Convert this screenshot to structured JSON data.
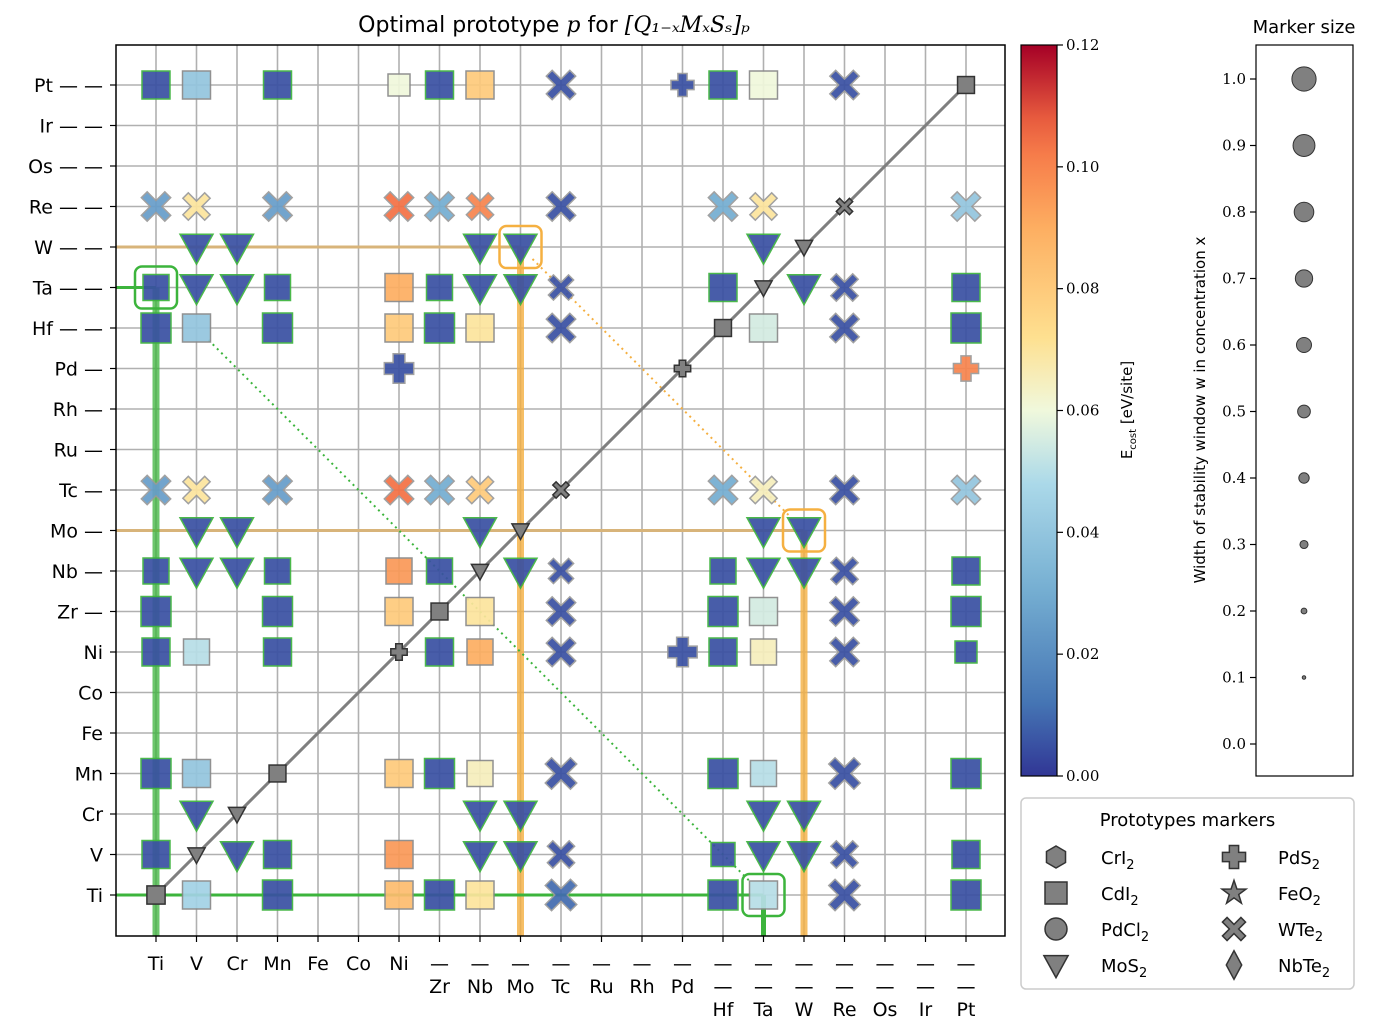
{
  "chart_data": {
    "type": "scatter",
    "title_prefix": "Optimal prototype ",
    "title_p": "p",
    "title_for": " for ",
    "title_formula": "[Q₁₋ₓMₓSₛ]ₚ",
    "x_top_labels": [
      "Ti",
      "V",
      "Cr",
      "Mn",
      "Fe",
      "Co",
      "Ni",
      "—",
      "—",
      "—",
      "—",
      "—",
      "—",
      "—",
      "—",
      "—",
      "—",
      "—",
      "—",
      "—",
      "—"
    ],
    "x_bottom_labels": [
      "",
      "",
      "",
      "",
      "",
      "",
      "",
      "Zr",
      "Nb",
      "Mo",
      "Tc",
      "Ru",
      "Rh",
      "Pd",
      "—",
      "—",
      "—",
      "—",
      "—",
      "—",
      "—"
    ],
    "x_third_labels": [
      "",
      "",
      "",
      "",
      "",
      "",
      "",
      "",
      "",
      "",
      "",
      "",
      "",
      "",
      "Hf",
      "Ta",
      "W",
      "Re",
      "Os",
      "Ir",
      "Pt"
    ],
    "y_labels": [
      "Ti",
      "V",
      "Cr",
      "Mn",
      "Fe",
      "Co",
      "Ni",
      "Zr —",
      "Nb —",
      "Mo —",
      "Tc —",
      "Ru —",
      "Rh —",
      "Pd —",
      "Hf — —",
      "Ta — —",
      "W — —",
      "Re — —",
      "Os — —",
      "Ir — —",
      "Pt — —"
    ],
    "colorbar": {
      "label": "E_cost [eV/site]",
      "label_main": "E",
      "label_sub": "cost",
      "label_unit": " [eV/site]",
      "min": 0.0,
      "max": 0.12,
      "ticks": [
        "0.00",
        "0.02",
        "0.04",
        "0.06",
        "0.08",
        "0.10",
        "0.12"
      ]
    },
    "size_legend": {
      "title": "Marker size",
      "axis_label": "Width of stability window w in concentration x",
      "values": [
        "0.0",
        "0.1",
        "0.2",
        "0.3",
        "0.4",
        "0.5",
        "0.6",
        "0.7",
        "0.8",
        "0.9",
        "1.0"
      ]
    },
    "prototype_legend": {
      "title": "Prototypes markers",
      "items": [
        {
          "name": "CrI",
          "sub": "2",
          "shape": "hexagon"
        },
        {
          "name": "PdS",
          "sub": "2",
          "shape": "plus"
        },
        {
          "name": "CdI",
          "sub": "2",
          "shape": "square"
        },
        {
          "name": "FeO",
          "sub": "2",
          "shape": "star"
        },
        {
          "name": "PdCl",
          "sub": "2",
          "shape": "circle"
        },
        {
          "name": "WTe",
          "sub": "2",
          "shape": "x"
        },
        {
          "name": "MoS",
          "sub": "2",
          "shape": "triangle"
        },
        {
          "name": "NbTe",
          "sub": "2",
          "shape": "diamond"
        }
      ]
    },
    "colors": {
      "low": "#3b4a9e",
      "accent_green": "#3cb43c",
      "accent_orange": "#f5b041",
      "diag": "#7f7f7f",
      "grid": "#b0b0b0"
    },
    "points": [
      [
        0,
        0,
        "square",
        -1,
        0.8
      ],
      [
        1,
        1,
        "triangle",
        -1,
        0.6
      ],
      [
        2,
        2,
        "triangle",
        -1,
        0.6
      ],
      [
        3,
        3,
        "square",
        -1,
        0.7
      ],
      [
        6,
        6,
        "plus",
        -1,
        0.6
      ],
      [
        7,
        7,
        "square",
        -1,
        0.7
      ],
      [
        8,
        8,
        "triangle",
        -1,
        0.6
      ],
      [
        9,
        9,
        "triangle",
        -1,
        0.6
      ],
      [
        10,
        10,
        "x",
        -1,
        0.6
      ],
      [
        13,
        13,
        "plus",
        -1,
        0.6
      ],
      [
        14,
        14,
        "square",
        -1,
        0.7
      ],
      [
        15,
        15,
        "triangle",
        -1,
        0.6
      ],
      [
        16,
        16,
        "triangle",
        -1,
        0.6
      ],
      [
        17,
        17,
        "x",
        -1,
        0.6
      ],
      [
        20,
        20,
        "square",
        -1,
        0.7
      ],
      [
        1,
        0,
        "square",
        0.045,
        0.8
      ],
      [
        3,
        0,
        "square",
        0.005,
        0.9
      ],
      [
        6,
        0,
        "square",
        0.085,
        0.8
      ],
      [
        7,
        0,
        "square",
        0.005,
        0.9
      ],
      [
        8,
        0,
        "square",
        0.07,
        0.8
      ],
      [
        10,
        0,
        "x",
        0.01,
        0.9
      ],
      [
        14,
        0,
        "square",
        0.005,
        0.9
      ],
      [
        15,
        0,
        "square",
        0.05,
        0.8
      ],
      [
        17,
        0,
        "x",
        0.005,
        0.9
      ],
      [
        20,
        0,
        "square",
        0.005,
        0.9
      ],
      [
        0,
        1,
        "square",
        0.005,
        0.8
      ],
      [
        2,
        1,
        "triangle",
        0.005,
        0.9
      ],
      [
        3,
        1,
        "square",
        0.005,
        0.8
      ],
      [
        6,
        1,
        "square",
        0.095,
        0.8
      ],
      [
        8,
        1,
        "triangle",
        0.005,
        0.9
      ],
      [
        9,
        1,
        "triangle",
        0.005,
        0.9
      ],
      [
        10,
        1,
        "x",
        0.005,
        0.7
      ],
      [
        14,
        1,
        "square",
        0.005,
        0.6
      ],
      [
        15,
        1,
        "triangle",
        0.005,
        0.9
      ],
      [
        16,
        1,
        "triangle",
        0.005,
        0.9
      ],
      [
        17,
        1,
        "x",
        0.005,
        0.7
      ],
      [
        20,
        1,
        "square",
        0.005,
        0.8
      ],
      [
        1,
        2,
        "triangle",
        0.005,
        0.9
      ],
      [
        8,
        2,
        "triangle",
        0.005,
        0.9
      ],
      [
        9,
        2,
        "triangle",
        0.005,
        0.9
      ],
      [
        15,
        2,
        "triangle",
        0.005,
        0.9
      ],
      [
        16,
        2,
        "triangle",
        0.005,
        0.9
      ],
      [
        0,
        3,
        "square",
        0.005,
        0.9
      ],
      [
        1,
        3,
        "square",
        0.04,
        0.8
      ],
      [
        6,
        3,
        "square",
        0.08,
        0.8
      ],
      [
        7,
        3,
        "square",
        0.005,
        0.9
      ],
      [
        8,
        3,
        "square",
        0.065,
        0.7
      ],
      [
        10,
        3,
        "x",
        0.005,
        0.9
      ],
      [
        14,
        3,
        "square",
        0.005,
        0.9
      ],
      [
        15,
        3,
        "square",
        0.05,
        0.7
      ],
      [
        17,
        3,
        "x",
        0.005,
        0.9
      ],
      [
        20,
        3,
        "square",
        0.005,
        0.9
      ],
      [
        0,
        6,
        "square",
        0.005,
        0.8
      ],
      [
        1,
        6,
        "square",
        0.05,
        0.7
      ],
      [
        3,
        6,
        "square",
        0.005,
        0.8
      ],
      [
        7,
        6,
        "square",
        0.005,
        0.8
      ],
      [
        8,
        6,
        "square",
        0.09,
        0.7
      ],
      [
        10,
        6,
        "x",
        0.005,
        0.8
      ],
      [
        13,
        6,
        "plus",
        0.005,
        0.8
      ],
      [
        14,
        6,
        "square",
        0.005,
        0.8
      ],
      [
        15,
        6,
        "square",
        0.065,
        0.7
      ],
      [
        17,
        6,
        "x",
        0.005,
        0.8
      ],
      [
        20,
        6,
        "square",
        0.005,
        0.5
      ],
      [
        0,
        7,
        "square",
        0.005,
        0.9
      ],
      [
        3,
        7,
        "square",
        0.005,
        0.9
      ],
      [
        6,
        7,
        "square",
        0.08,
        0.8
      ],
      [
        8,
        7,
        "square",
        0.07,
        0.8
      ],
      [
        10,
        7,
        "x",
        0.005,
        0.8
      ],
      [
        14,
        7,
        "square",
        0.005,
        0.9
      ],
      [
        15,
        7,
        "square",
        0.055,
        0.8
      ],
      [
        17,
        7,
        "x",
        0.005,
        0.8
      ],
      [
        20,
        7,
        "square",
        0.005,
        0.9
      ],
      [
        0,
        8,
        "square",
        0.005,
        0.7
      ],
      [
        1,
        8,
        "triangle",
        0.005,
        0.9
      ],
      [
        2,
        8,
        "triangle",
        0.005,
        0.9
      ],
      [
        3,
        8,
        "square",
        0.005,
        0.7
      ],
      [
        6,
        8,
        "square",
        0.095,
        0.7
      ],
      [
        7,
        8,
        "square",
        0.005,
        0.7
      ],
      [
        9,
        8,
        "triangle",
        0.005,
        0.9
      ],
      [
        10,
        8,
        "x",
        0.005,
        0.6
      ],
      [
        14,
        8,
        "square",
        0.005,
        0.7
      ],
      [
        15,
        8,
        "triangle",
        0.005,
        0.9
      ],
      [
        16,
        8,
        "triangle",
        0.005,
        0.9
      ],
      [
        17,
        8,
        "x",
        0.005,
        0.7
      ],
      [
        20,
        8,
        "square",
        0.005,
        0.8
      ],
      [
        1,
        9,
        "triangle",
        0.005,
        0.9
      ],
      [
        2,
        9,
        "triangle",
        0.005,
        0.9
      ],
      [
        8,
        9,
        "triangle",
        0.005,
        0.9
      ],
      [
        15,
        9,
        "triangle",
        0.005,
        0.9
      ],
      [
        16,
        9,
        "triangle",
        0.005,
        0.9
      ],
      [
        0,
        10,
        "x",
        0.025,
        0.8
      ],
      [
        1,
        10,
        "x",
        0.07,
        0.7
      ],
      [
        3,
        10,
        "x",
        0.025,
        0.8
      ],
      [
        6,
        10,
        "x",
        0.105,
        0.8
      ],
      [
        7,
        10,
        "x",
        0.03,
        0.8
      ],
      [
        8,
        10,
        "x",
        0.08,
        0.7
      ],
      [
        14,
        10,
        "x",
        0.03,
        0.8
      ],
      [
        15,
        10,
        "x",
        0.065,
        0.7
      ],
      [
        17,
        10,
        "x",
        0.005,
        0.8
      ],
      [
        20,
        10,
        "x",
        0.04,
        0.8
      ],
      [
        6,
        13,
        "plus",
        0.005,
        0.8
      ],
      [
        20,
        13,
        "plus",
        0.1,
        0.6
      ],
      [
        0,
        14,
        "square",
        0.005,
        0.9
      ],
      [
        1,
        14,
        "square",
        0.04,
        0.8
      ],
      [
        3,
        14,
        "square",
        0.005,
        0.9
      ],
      [
        6,
        14,
        "square",
        0.08,
        0.8
      ],
      [
        7,
        14,
        "square",
        0.005,
        0.9
      ],
      [
        8,
        14,
        "square",
        0.07,
        0.8
      ],
      [
        10,
        14,
        "x",
        0.005,
        0.8
      ],
      [
        15,
        14,
        "square",
        0.055,
        0.8
      ],
      [
        17,
        14,
        "x",
        0.005,
        0.8
      ],
      [
        20,
        14,
        "square",
        0.005,
        0.9
      ],
      [
        0,
        15,
        "square",
        0.005,
        0.7
      ],
      [
        1,
        15,
        "triangle",
        0.005,
        0.9
      ],
      [
        2,
        15,
        "triangle",
        0.005,
        0.9
      ],
      [
        3,
        15,
        "square",
        0.005,
        0.7
      ],
      [
        6,
        15,
        "square",
        0.09,
        0.8
      ],
      [
        7,
        15,
        "square",
        0.005,
        0.7
      ],
      [
        8,
        15,
        "triangle",
        0.005,
        0.9
      ],
      [
        9,
        15,
        "triangle",
        0.005,
        0.9
      ],
      [
        10,
        15,
        "x",
        0.005,
        0.6
      ],
      [
        14,
        15,
        "square",
        0.005,
        0.8
      ],
      [
        16,
        15,
        "triangle",
        0.005,
        0.9
      ],
      [
        17,
        15,
        "x",
        0.005,
        0.7
      ],
      [
        20,
        15,
        "square",
        0.005,
        0.8
      ],
      [
        1,
        16,
        "triangle",
        0.005,
        0.9
      ],
      [
        2,
        16,
        "triangle",
        0.005,
        0.9
      ],
      [
        8,
        16,
        "triangle",
        0.005,
        0.9
      ],
      [
        9,
        16,
        "triangle",
        0.005,
        0.9
      ],
      [
        15,
        16,
        "triangle",
        0.005,
        0.9
      ],
      [
        0,
        17,
        "x",
        0.025,
        0.8
      ],
      [
        1,
        17,
        "x",
        0.07,
        0.7
      ],
      [
        3,
        17,
        "x",
        0.025,
        0.8
      ],
      [
        6,
        17,
        "x",
        0.105,
        0.8
      ],
      [
        7,
        17,
        "x",
        0.03,
        0.8
      ],
      [
        8,
        17,
        "x",
        0.1,
        0.7
      ],
      [
        10,
        17,
        "x",
        0.005,
        0.8
      ],
      [
        14,
        17,
        "x",
        0.03,
        0.8
      ],
      [
        15,
        17,
        "x",
        0.07,
        0.7
      ],
      [
        20,
        17,
        "x",
        0.04,
        0.8
      ],
      [
        0,
        20,
        "square",
        0.005,
        0.8
      ],
      [
        1,
        20,
        "square",
        0.04,
        0.8
      ],
      [
        3,
        20,
        "square",
        0.005,
        0.8
      ],
      [
        6,
        20,
        "square",
        0.06,
        0.5
      ],
      [
        7,
        20,
        "square",
        0.005,
        0.8
      ],
      [
        8,
        20,
        "square",
        0.08,
        0.8
      ],
      [
        10,
        20,
        "x",
        0.005,
        0.8
      ],
      [
        13,
        20,
        "plus",
        0.005,
        0.5
      ],
      [
        14,
        20,
        "square",
        0.005,
        0.8
      ],
      [
        15,
        20,
        "square",
        0.06,
        0.8
      ],
      [
        17,
        20,
        "x",
        0.005,
        0.8
      ]
    ]
  }
}
